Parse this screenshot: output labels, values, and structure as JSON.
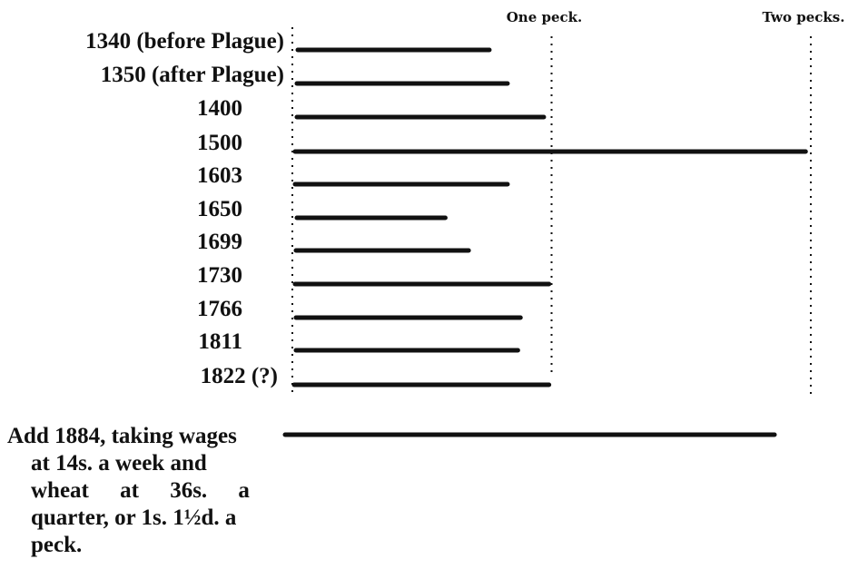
{
  "chart_data": {
    "type": "bar",
    "orientation": "horizontal",
    "axis_ticks": [
      {
        "value": 1,
        "label": "One peck."
      },
      {
        "value": 2,
        "label": "Two pecks."
      }
    ],
    "xlim": [
      0,
      2
    ],
    "grid": "dotted vertical lines at 0, 1 and 2 pecks",
    "bar_color": "#111111",
    "categories": [
      "1340 (before Plague)",
      "1350 (after Plague)",
      "1400",
      "1500",
      "1603",
      "1650",
      "1699",
      "1730",
      "1766",
      "1811",
      "1822 (?)"
    ],
    "values": [
      0.76,
      0.83,
      0.97,
      1.98,
      0.83,
      0.59,
      0.68,
      0.99,
      0.88,
      0.87,
      0.99
    ],
    "extra_bar": {
      "value": 1.86,
      "label_lines": [
        "Add 1884, taking wages",
        "at 14s. a week and",
        "wheat at 36s. a",
        "quarter, or 1s. 1½d. a",
        "peck."
      ]
    }
  }
}
